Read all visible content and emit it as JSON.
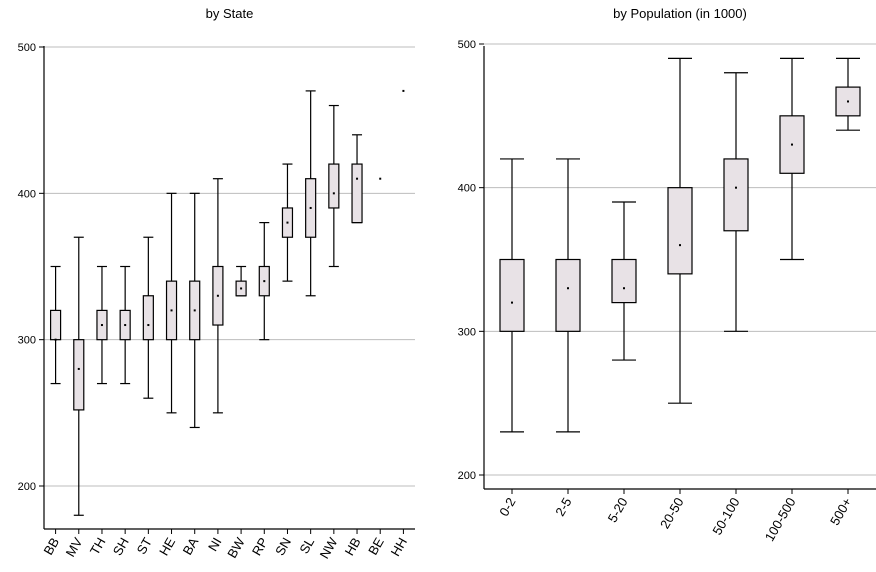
{
  "chart_data": [
    {
      "type": "box",
      "title": "by State",
      "ylim": [
        170,
        510
      ],
      "yticks": [
        200,
        300,
        400,
        500
      ],
      "grid": "horizontal",
      "categories": [
        "BB",
        "MV",
        "TH",
        "SH",
        "ST",
        "HE",
        "BA",
        "NI",
        "BW",
        "RP",
        "SN",
        "SL",
        "NW",
        "HB",
        "BE",
        "HH"
      ],
      "boxes": [
        {
          "whisker_low": 270,
          "q1": 300,
          "median": 300,
          "q3": 320,
          "whisker_high": 350
        },
        {
          "whisker_low": 180,
          "q1": 252,
          "median": 280,
          "q3": 300,
          "whisker_high": 370
        },
        {
          "whisker_low": 270,
          "q1": 300,
          "median": 310,
          "q3": 320,
          "whisker_high": 350
        },
        {
          "whisker_low": 270,
          "q1": 300,
          "median": 310,
          "q3": 320,
          "whisker_high": 350
        },
        {
          "whisker_low": 260,
          "q1": 300,
          "median": 310,
          "q3": 330,
          "whisker_high": 370
        },
        {
          "whisker_low": 250,
          "q1": 300,
          "median": 320,
          "q3": 340,
          "whisker_high": 400
        },
        {
          "whisker_low": 240,
          "q1": 300,
          "median": 320,
          "q3": 340,
          "whisker_high": 400
        },
        {
          "whisker_low": 250,
          "q1": 310,
          "median": 330,
          "q3": 350,
          "whisker_high": 410
        },
        {
          "whisker_low": 330,
          "q1": 330,
          "median": 335,
          "q3": 340,
          "whisker_high": 350
        },
        {
          "whisker_low": 300,
          "q1": 330,
          "median": 340,
          "q3": 350,
          "whisker_high": 380
        },
        {
          "whisker_low": 340,
          "q1": 370,
          "median": 380,
          "q3": 390,
          "whisker_high": 420
        },
        {
          "whisker_low": 330,
          "q1": 370,
          "median": 390,
          "q3": 410,
          "whisker_high": 470
        },
        {
          "whisker_low": 350,
          "q1": 390,
          "median": 400,
          "q3": 420,
          "whisker_high": 460
        },
        {
          "whisker_low": 380,
          "q1": 380,
          "median": 410,
          "q3": 420,
          "whisker_high": 440
        },
        {
          "whisker_low": 410,
          "q1": 410,
          "median": 410,
          "q3": 410,
          "whisker_high": 410
        },
        {
          "whisker_low": 470,
          "q1": 470,
          "median": 470,
          "q3": 470,
          "whisker_high": 470
        }
      ]
    },
    {
      "type": "box",
      "title": "by Population (in 1000)",
      "ylim": [
        195,
        510
      ],
      "yticks": [
        200,
        300,
        400,
        500
      ],
      "grid": "horizontal",
      "categories": [
        "0-2",
        "2-5",
        "5-20",
        "20-50",
        "50-100",
        "100-500",
        "500+"
      ],
      "boxes": [
        {
          "whisker_low": 230,
          "q1": 300,
          "median": 320,
          "q3": 350,
          "whisker_high": 420
        },
        {
          "whisker_low": 230,
          "q1": 300,
          "median": 330,
          "q3": 350,
          "whisker_high": 420
        },
        {
          "whisker_low": 280,
          "q1": 320,
          "median": 330,
          "q3": 350,
          "whisker_high": 390
        },
        {
          "whisker_low": 250,
          "q1": 340,
          "median": 360,
          "q3": 400,
          "whisker_high": 490
        },
        {
          "whisker_low": 300,
          "q1": 370,
          "median": 400,
          "q3": 420,
          "whisker_high": 480
        },
        {
          "whisker_low": 350,
          "q1": 410,
          "median": 430,
          "q3": 450,
          "whisker_high": 490
        },
        {
          "whisker_low": 440,
          "q1": 450,
          "median": 460,
          "q3": 470,
          "whisker_high": 490
        }
      ]
    }
  ],
  "colors": {
    "box_fill": "#e8e2e6",
    "box_stroke": "#000000",
    "grid": "#bdbdbd",
    "axis": "#000000",
    "background": "#ffffff"
  }
}
